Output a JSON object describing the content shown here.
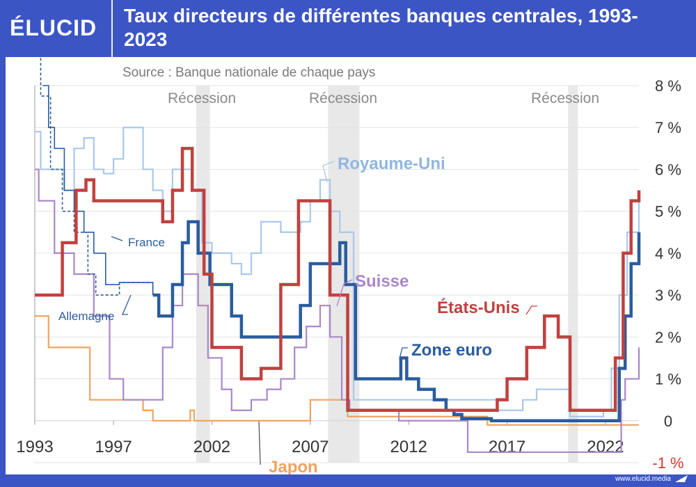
{
  "brand": {
    "logo": "ÉLUCID",
    "url": "www.elucid.media"
  },
  "title": "Taux directeurs de différentes banques centrales, 1993-2023",
  "chart_data": {
    "type": "line",
    "title": "Taux directeurs de différentes banques centrales, 1993-2023",
    "subtitle": "Source : Banque nationale de chaque pays",
    "xlim": [
      1993,
      2023.7
    ],
    "ylim": [
      -1,
      8
    ],
    "x_ticks": [
      "1993",
      "1997",
      "2002",
      "2007",
      "2012",
      "2017",
      "2022"
    ],
    "y_ticks": [
      "8 %",
      "7 %",
      "6 %",
      "5 %",
      "4 %",
      "3 %",
      "2 %",
      "1 %",
      "0",
      "-1 %"
    ],
    "recessions": [
      {
        "label": "Récession",
        "start": 2001.2,
        "end": 2001.9
      },
      {
        "label": "Récession",
        "start": 2007.9,
        "end": 2009.5
      },
      {
        "label": "Récession",
        "start": 2020.1,
        "end": 2020.6
      }
    ],
    "series": [
      {
        "name": "États-Unis",
        "color": "#c0413f",
        "width": 4.5,
        "x": [
          1993,
          1994.1,
          1994.4,
          1995.1,
          1995.6,
          1996.0,
          1998.8,
          1999.5,
          2000.0,
          2000.5,
          2001.0,
          2001.6,
          2002.0,
          2003.5,
          2004.5,
          2005.5,
          2006.4,
          2007.6,
          2008.0,
          2008.9,
          2015.9,
          2016.5,
          2017.0,
          2018.0,
          2018.9,
          2019.6,
          2020.2,
          2022.2,
          2022.5,
          2022.9,
          2023.3,
          2023.7
        ],
        "y": [
          3,
          3,
          4.25,
          5.5,
          5.75,
          5.25,
          5.25,
          4.75,
          5.5,
          6.5,
          5.5,
          3.5,
          1.75,
          1.0,
          1.25,
          3.25,
          5.25,
          5.25,
          3,
          0.25,
          0.25,
          0.5,
          1.0,
          1.75,
          2.5,
          2.0,
          0.25,
          0.25,
          1.5,
          4.0,
          5.25,
          5.5
        ]
      },
      {
        "name": "Zone euro",
        "color": "#2a5c9e",
        "width": 4.5,
        "x": [
          1999.0,
          1999.3,
          2000.0,
          2000.5,
          2000.8,
          2001.3,
          2001.9,
          2003.0,
          2003.5,
          2005.9,
          2006.5,
          2007.0,
          2008.5,
          2008.8,
          2009.3,
          2011.3,
          2011.6,
          2011.9,
          2012.5,
          2013.3,
          2013.9,
          2014.3,
          2014.7,
          2016.2,
          2022.5,
          2022.7,
          2023.0,
          2023.3,
          2023.7
        ],
        "y": [
          3,
          2.5,
          3.25,
          4.25,
          4.75,
          4.0,
          3.25,
          2.5,
          2.0,
          2.0,
          2.75,
          3.75,
          4.25,
          3.25,
          1.0,
          1.0,
          1.5,
          1.0,
          0.75,
          0.5,
          0.25,
          0.15,
          0.05,
          0,
          0,
          1.25,
          2.5,
          3.75,
          4.5
        ]
      },
      {
        "name": "Royaume-Uni",
        "color": "#a9c8ea",
        "width": 2.2,
        "x": [
          1993,
          1993.3,
          1994.5,
          1995.0,
          1995.5,
          1996.0,
          1996.5,
          1997.0,
          1997.5,
          1998.5,
          1999.0,
          1999.5,
          2000.0,
          2001.0,
          2001.5,
          2002.0,
          2003.0,
          2003.5,
          2004.0,
          2004.5,
          2005.5,
          2006.5,
          2007.0,
          2007.5,
          2008.0,
          2008.5,
          2009.2,
          2016.5,
          2017.8,
          2018.5,
          2020.2,
          2021.9,
          2022.3,
          2022.7,
          2023.1,
          2023.7
        ],
        "y": [
          6.9,
          6.0,
          5.5,
          6.5,
          6.75,
          6.0,
          5.9,
          6.25,
          7.0,
          6.0,
          5.5,
          5.0,
          6.0,
          5.5,
          4.25,
          4.0,
          3.75,
          3.5,
          4.0,
          4.75,
          4.5,
          4.75,
          5.25,
          5.75,
          5.0,
          4.5,
          0.5,
          0.25,
          0.5,
          0.75,
          0.1,
          0.25,
          1.25,
          3.0,
          4.5,
          5.25
        ]
      },
      {
        "name": "Suisse",
        "color": "#a987c7",
        "width": 2.2,
        "x": [
          1993,
          1993.2,
          1994.0,
          1995.0,
          1996.0,
          1996.8,
          1997.5,
          1999.0,
          1999.5,
          2000.0,
          2000.5,
          2001.3,
          2001.8,
          2002.5,
          2003.0,
          2004.0,
          2004.8,
          2005.5,
          2006.2,
          2006.8,
          2007.5,
          2008.0,
          2008.6,
          2009.0,
          2011.5,
          2015.0,
          2022.5,
          2022.8,
          2023.0,
          2023.7
        ],
        "y": [
          6.0,
          5.25,
          4.0,
          3.5,
          2.5,
          1.0,
          0.5,
          0.5,
          1.75,
          2.75,
          3.5,
          2.75,
          1.5,
          0.75,
          0.25,
          0.5,
          0.75,
          1.0,
          1.75,
          2.25,
          2.75,
          2.0,
          0.5,
          0.25,
          0,
          -0.75,
          -0.75,
          0.5,
          1.0,
          1.75
        ]
      },
      {
        "name": "Japon",
        "color": "#f0a35e",
        "width": 2.2,
        "x": [
          1993,
          1993.7,
          1995.0,
          1995.8,
          1997.0,
          1998.5,
          1999.0,
          2000.5,
          2000.9,
          2001.1,
          2006.5,
          2007.0,
          2008.6,
          2008.9,
          2016.0,
          2023.7
        ],
        "y": [
          2.5,
          1.75,
          1.75,
          0.5,
          0.5,
          0.25,
          0,
          0,
          0.25,
          0,
          0,
          0.5,
          0.5,
          0.1,
          -0.1,
          -0.1
        ]
      },
      {
        "name": "France",
        "color": "#2a5c9e",
        "width": 1.6,
        "dashed": false,
        "x": [
          1993.4,
          1993.7,
          1994.0,
          1994.5,
          1995.0,
          1995.5,
          1996.0,
          1996.6,
          1997.3,
          1998.8,
          1999.0
        ],
        "y": [
          8.0,
          7.0,
          6.5,
          5.5,
          5.0,
          4.5,
          4.0,
          3.25,
          3.3,
          3.3,
          3.0
        ]
      },
      {
        "name": "Allemagne",
        "color": "#2a5c9e",
        "width": 1.6,
        "dashed": true,
        "x": [
          1993.0,
          1993.3,
          1993.8,
          1994.4,
          1995.0,
          1995.7,
          1996.1,
          1996.8,
          1997.3,
          1998.8,
          1999.0
        ],
        "y": [
          8.75,
          7.75,
          6.0,
          5.0,
          4.5,
          3.5,
          3.0,
          3.0,
          3.3,
          3.3,
          3.0
        ]
      }
    ],
    "labels": [
      {
        "text": "Royaume-Uni",
        "series": "Royaume-Uni"
      },
      {
        "text": "Suisse",
        "series": "Suisse"
      },
      {
        "text": "États-Unis",
        "series": "États-Unis"
      },
      {
        "text": "Zone euro",
        "series": "Zone euro"
      },
      {
        "text": "France",
        "series": "France"
      },
      {
        "text": "Allemagne",
        "series": "Allemagne"
      },
      {
        "text": "Japon",
        "series": "Japon"
      }
    ]
  }
}
